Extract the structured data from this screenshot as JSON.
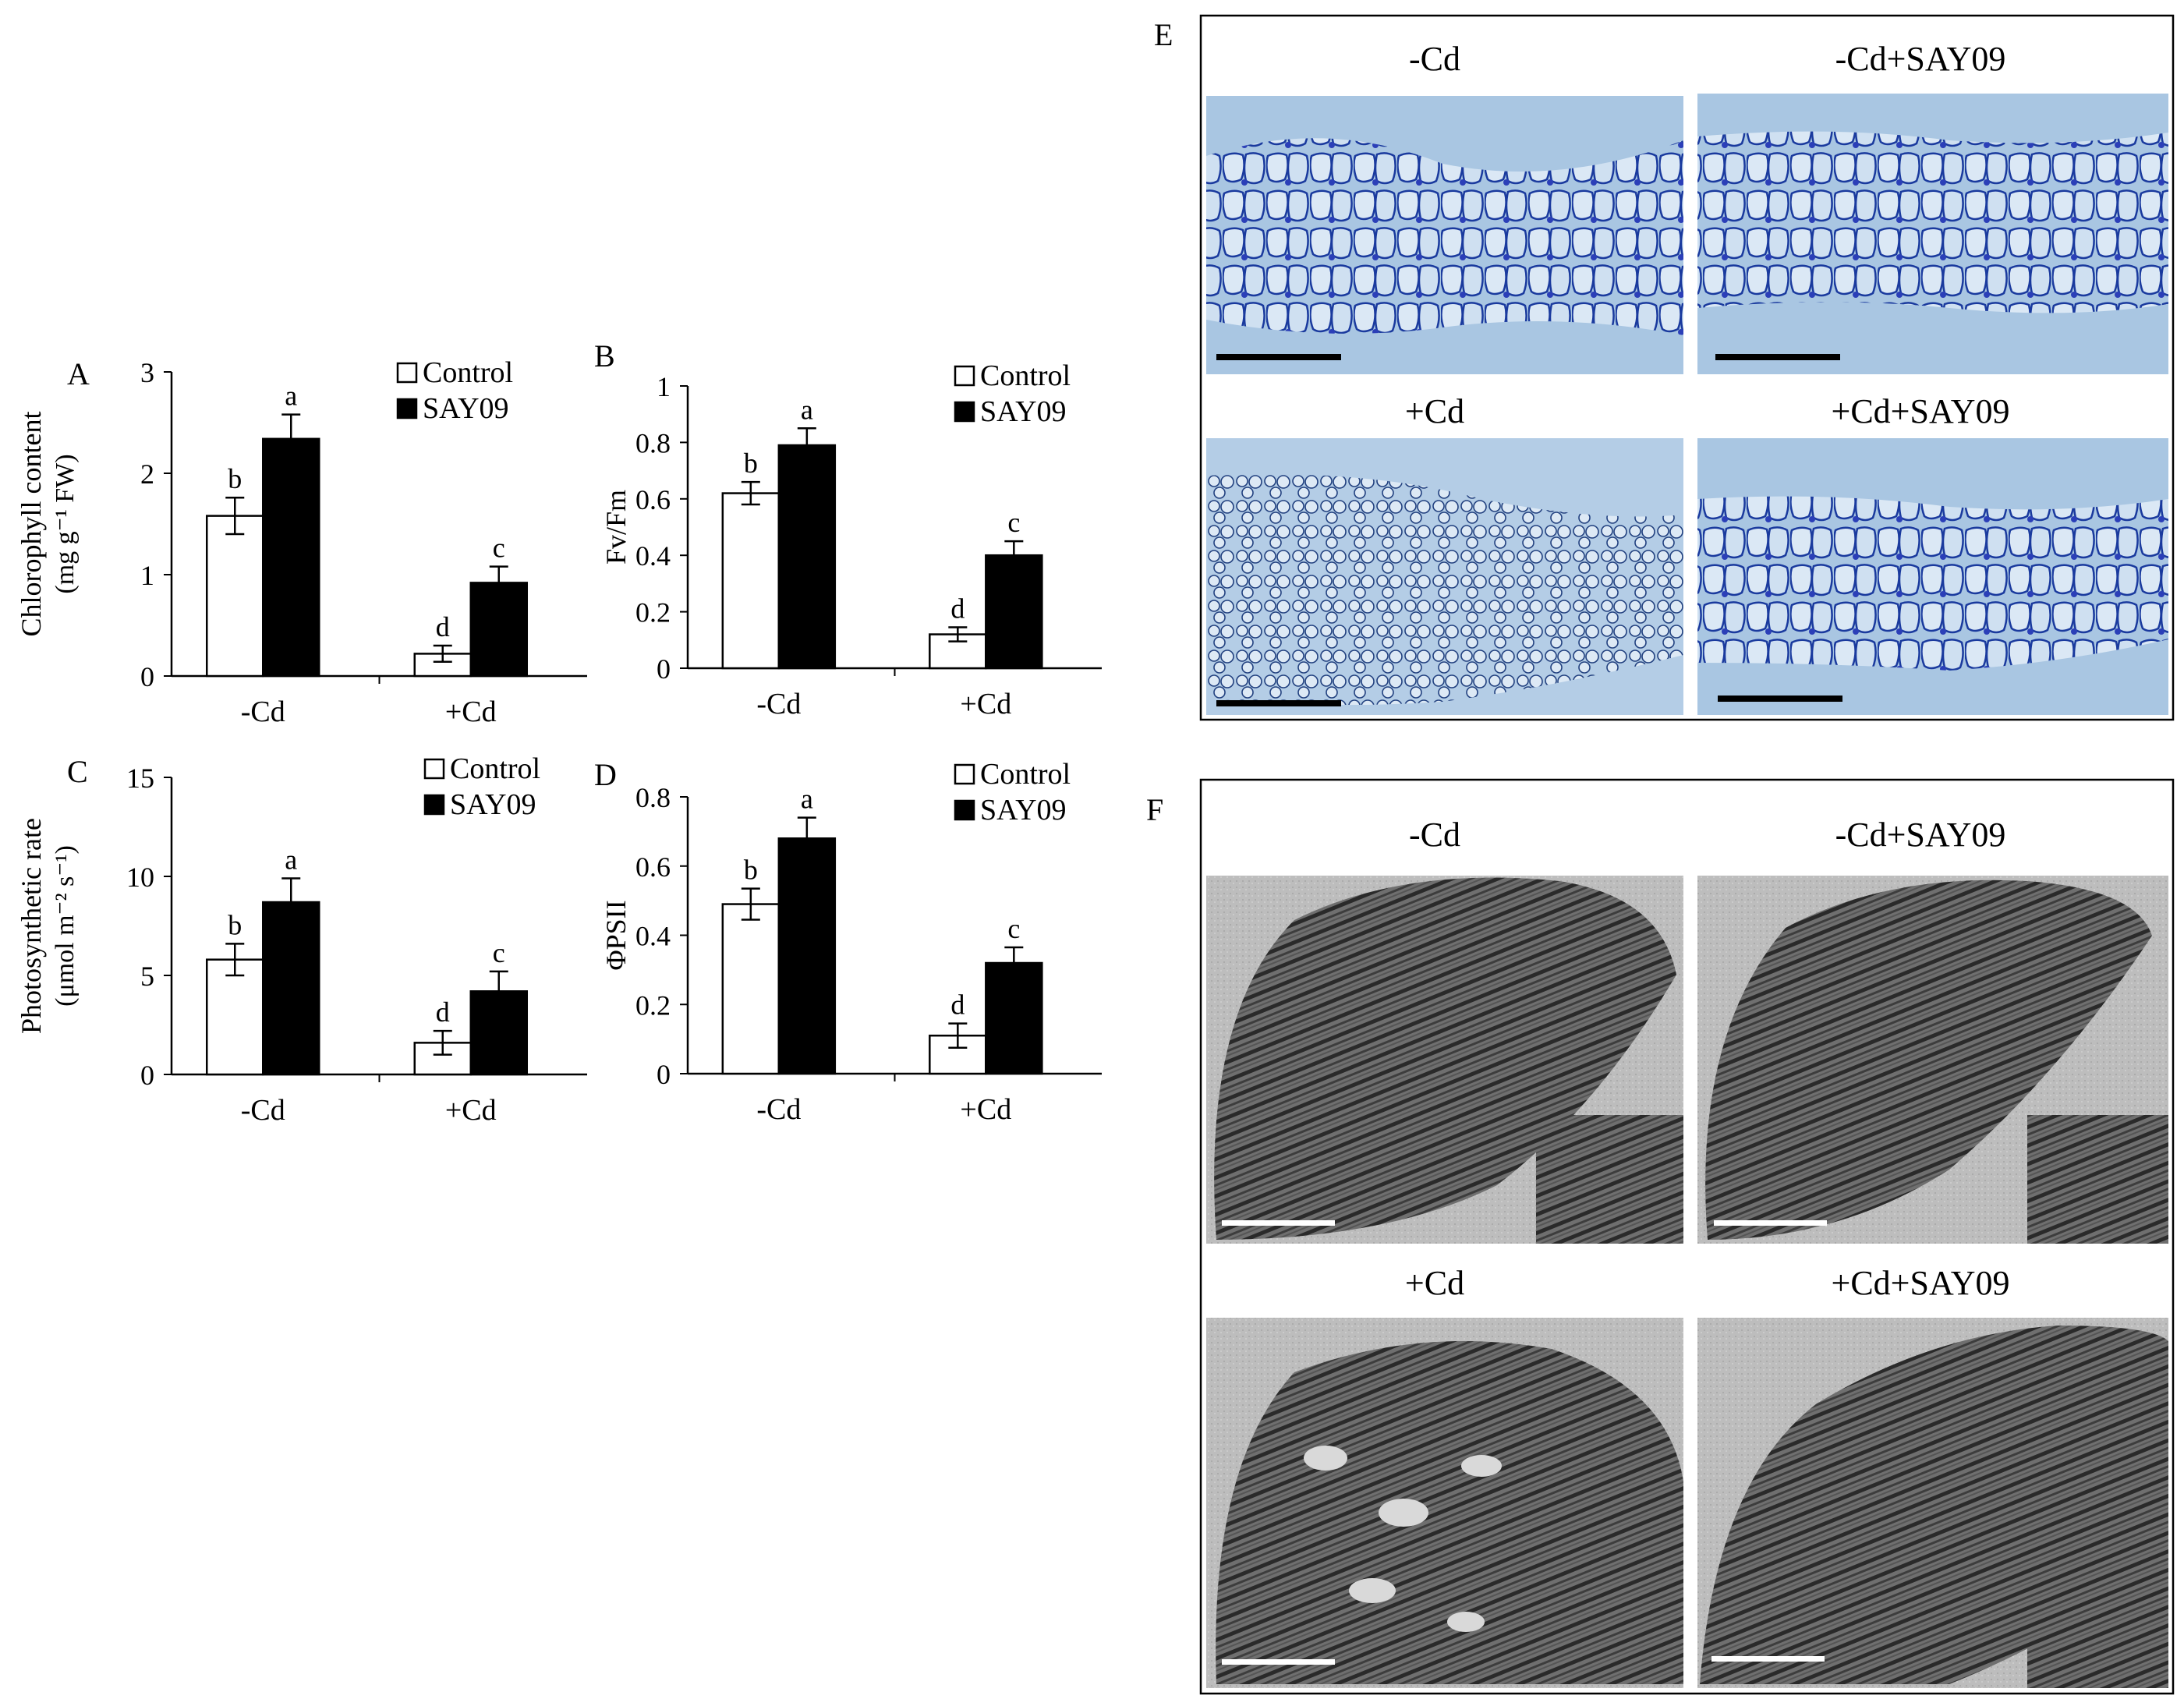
{
  "chart_data": [
    {
      "panel_letter": "A",
      "type": "bar",
      "ylabel_line1": "Chlorophyll content",
      "ylabel_line2": "(mg g⁻¹ FW)",
      "categories": [
        "-Cd",
        "+Cd"
      ],
      "yticks": [
        "0",
        "1",
        "2",
        "3"
      ],
      "ylim": [
        0,
        3
      ],
      "legend": [
        "Control",
        "SAY09"
      ],
      "series": [
        {
          "name": "Control",
          "color": "#ffffff",
          "values": [
            1.58,
            0.22
          ],
          "errors": [
            0.18,
            0.08
          ],
          "letters": [
            "b",
            "d"
          ]
        },
        {
          "name": "SAY09",
          "color": "#000000",
          "values": [
            2.34,
            0.92
          ],
          "errors": [
            0.24,
            0.16
          ],
          "letters": [
            "a",
            "c"
          ]
        }
      ]
    },
    {
      "panel_letter": "B",
      "type": "bar",
      "ylabel_line1": "Fv/Fm",
      "ylabel_line2": "",
      "categories": [
        "-Cd",
        "+Cd"
      ],
      "yticks": [
        "0",
        "0.2",
        "0.4",
        "0.6",
        "0.8",
        "1"
      ],
      "ylim": [
        0,
        1
      ],
      "legend": [
        "Control",
        "SAY09"
      ],
      "series": [
        {
          "name": "Control",
          "color": "#ffffff",
          "values": [
            0.62,
            0.12
          ],
          "errors": [
            0.04,
            0.025
          ],
          "letters": [
            "b",
            "d"
          ]
        },
        {
          "name": "SAY09",
          "color": "#000000",
          "values": [
            0.79,
            0.4
          ],
          "errors": [
            0.06,
            0.05
          ],
          "letters": [
            "a",
            "c"
          ]
        }
      ]
    },
    {
      "panel_letter": "C",
      "type": "bar",
      "ylabel_line1": "Photosynthetic rate",
      "ylabel_line2": "(μmol m⁻² s⁻¹)",
      "categories": [
        "-Cd",
        "+Cd"
      ],
      "yticks": [
        "0",
        "5",
        "10",
        "15"
      ],
      "ylim": [
        0,
        15
      ],
      "legend": [
        "Control",
        "SAY09"
      ],
      "series": [
        {
          "name": "Control",
          "color": "#ffffff",
          "values": [
            5.8,
            1.6
          ],
          "errors": [
            0.8,
            0.6
          ],
          "letters": [
            "b",
            "d"
          ]
        },
        {
          "name": "SAY09",
          "color": "#000000",
          "values": [
            8.7,
            4.2
          ],
          "errors": [
            1.2,
            1.0
          ],
          "letters": [
            "a",
            "c"
          ]
        }
      ]
    },
    {
      "panel_letter": "D",
      "type": "bar",
      "ylabel_line1": "ΦPSII",
      "ylabel_line2": "",
      "categories": [
        "-Cd",
        "+Cd"
      ],
      "yticks": [
        "0",
        "0.2",
        "0.4",
        "0.6",
        "0.8"
      ],
      "ylim": [
        0,
        0.8
      ],
      "legend": [
        "Control",
        "SAY09"
      ],
      "series": [
        {
          "name": "Control",
          "color": "#ffffff",
          "values": [
            0.49,
            0.11
          ],
          "errors": [
            0.045,
            0.035
          ],
          "letters": [
            "b",
            "d"
          ]
        },
        {
          "name": "SAY09",
          "color": "#000000",
          "values": [
            0.68,
            0.32
          ],
          "errors": [
            0.06,
            0.045
          ],
          "letters": [
            "a",
            "c"
          ]
        }
      ]
    }
  ],
  "micrographs": {
    "E": {
      "panel_letter": "E",
      "type": "light-microscopy",
      "labels": [
        "-Cd",
        "-Cd+SAY09",
        "+Cd",
        "+Cd+SAY09"
      ]
    },
    "F": {
      "panel_letter": "F",
      "type": "electron-microscopy",
      "labels": [
        "-Cd",
        "-Cd+SAY09",
        "+Cd",
        "+Cd+SAY09"
      ]
    }
  }
}
